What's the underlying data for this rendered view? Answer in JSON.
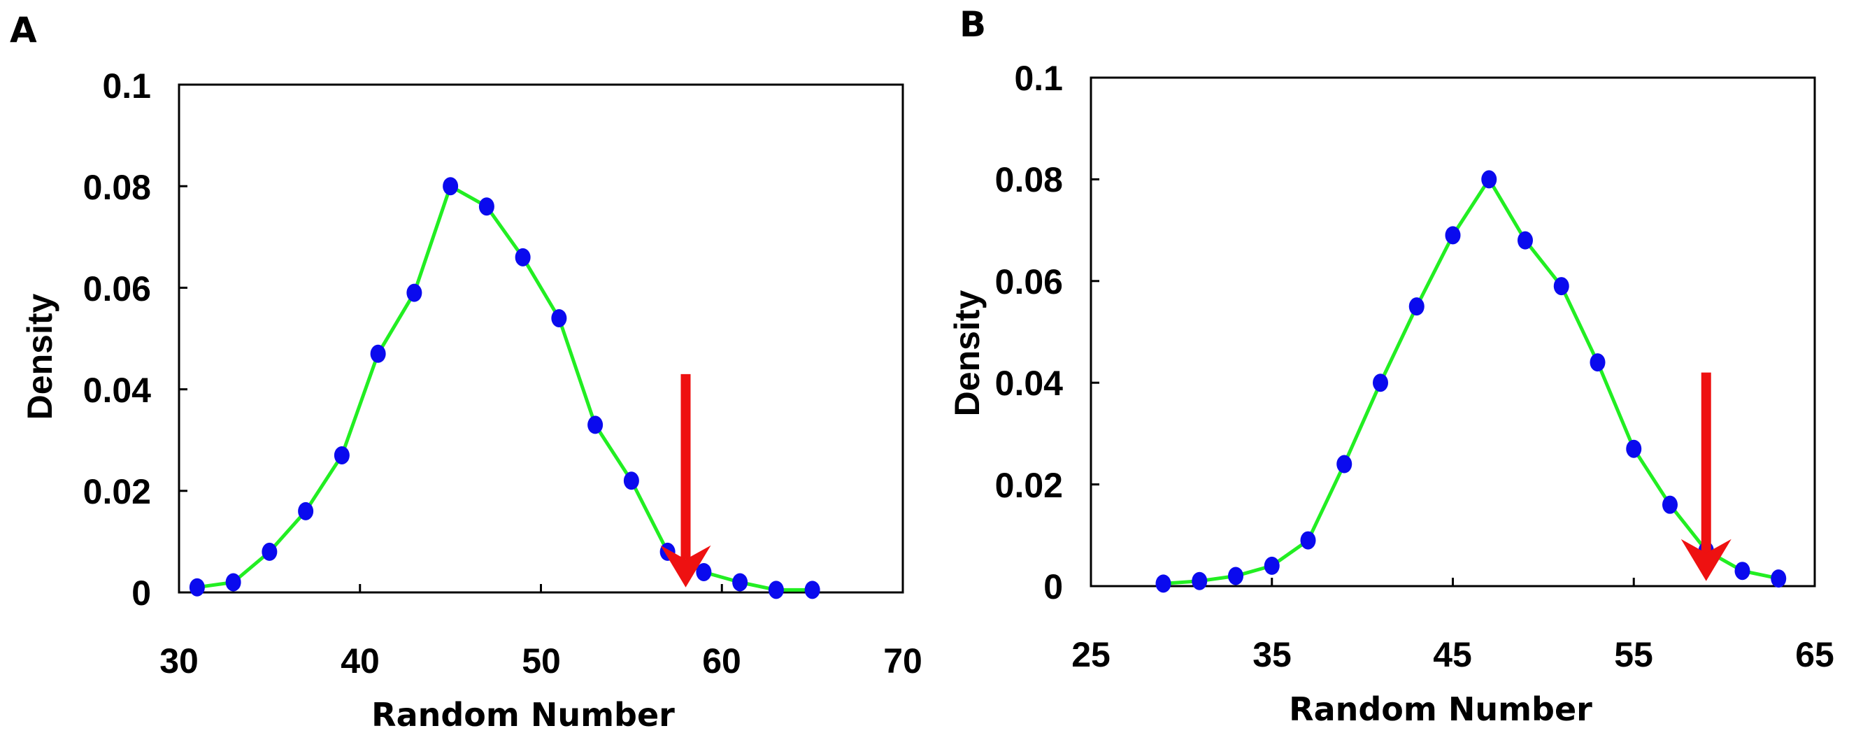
{
  "chart_data": [
    {
      "type": "line",
      "panel_label": "A",
      "title": "",
      "xlabel": "Random Number",
      "ylabel": "Density",
      "xlim": [
        30,
        70
      ],
      "ylim": [
        0,
        0.1
      ],
      "xticks": [
        30,
        40,
        50,
        60,
        70
      ],
      "xtick_labels": [
        "30",
        "40",
        "50",
        "60",
        "70"
      ],
      "yticks": [
        0,
        0.02,
        0.04,
        0.06,
        0.08,
        0.1
      ],
      "ytick_labels": [
        "0",
        "0.02",
        "0.04",
        "0.06",
        "0.08",
        "0.1"
      ],
      "grid": false,
      "line_color": "#22ee22",
      "marker_color": "#0a0aee",
      "x": [
        31,
        33,
        35,
        37,
        39,
        41,
        43,
        45,
        47,
        49,
        51,
        53,
        55,
        57,
        59,
        61,
        63,
        65
      ],
      "y": [
        0.001,
        0.002,
        0.008,
        0.016,
        0.027,
        0.047,
        0.059,
        0.08,
        0.076,
        0.066,
        0.054,
        0.033,
        0.022,
        0.008,
        0.004,
        0.002,
        0.0005,
        0.0005
      ],
      "annotation": {
        "type": "arrow",
        "color": "#ee1111",
        "x": 58,
        "y_from": 0.043,
        "y_to": 0.001
      }
    },
    {
      "type": "line",
      "panel_label": "B",
      "title": "",
      "xlabel": "Random Number",
      "ylabel": "Density",
      "xlim": [
        25,
        65
      ],
      "ylim": [
        0,
        0.1
      ],
      "xticks": [
        25,
        35,
        45,
        55,
        65
      ],
      "xtick_labels": [
        "25",
        "35",
        "45",
        "55",
        "65"
      ],
      "yticks": [
        0,
        0.02,
        0.04,
        0.06,
        0.08,
        0.1
      ],
      "ytick_labels": [
        "0",
        "0.02",
        "0.04",
        "0.06",
        "0.08",
        "0.1"
      ],
      "grid": false,
      "line_color": "#22ee22",
      "marker_color": "#0a0aee",
      "x": [
        29,
        31,
        33,
        35,
        37,
        39,
        41,
        43,
        45,
        47,
        49,
        51,
        53,
        55,
        57,
        59,
        61,
        63
      ],
      "y": [
        0.0005,
        0.001,
        0.002,
        0.004,
        0.009,
        0.024,
        0.04,
        0.055,
        0.069,
        0.08,
        0.068,
        0.059,
        0.044,
        0.027,
        0.016,
        0.007,
        0.003,
        0.0015
      ],
      "annotation": {
        "type": "arrow",
        "color": "#ee1111",
        "x": 59,
        "y_from": 0.042,
        "y_to": 0.001
      }
    }
  ]
}
